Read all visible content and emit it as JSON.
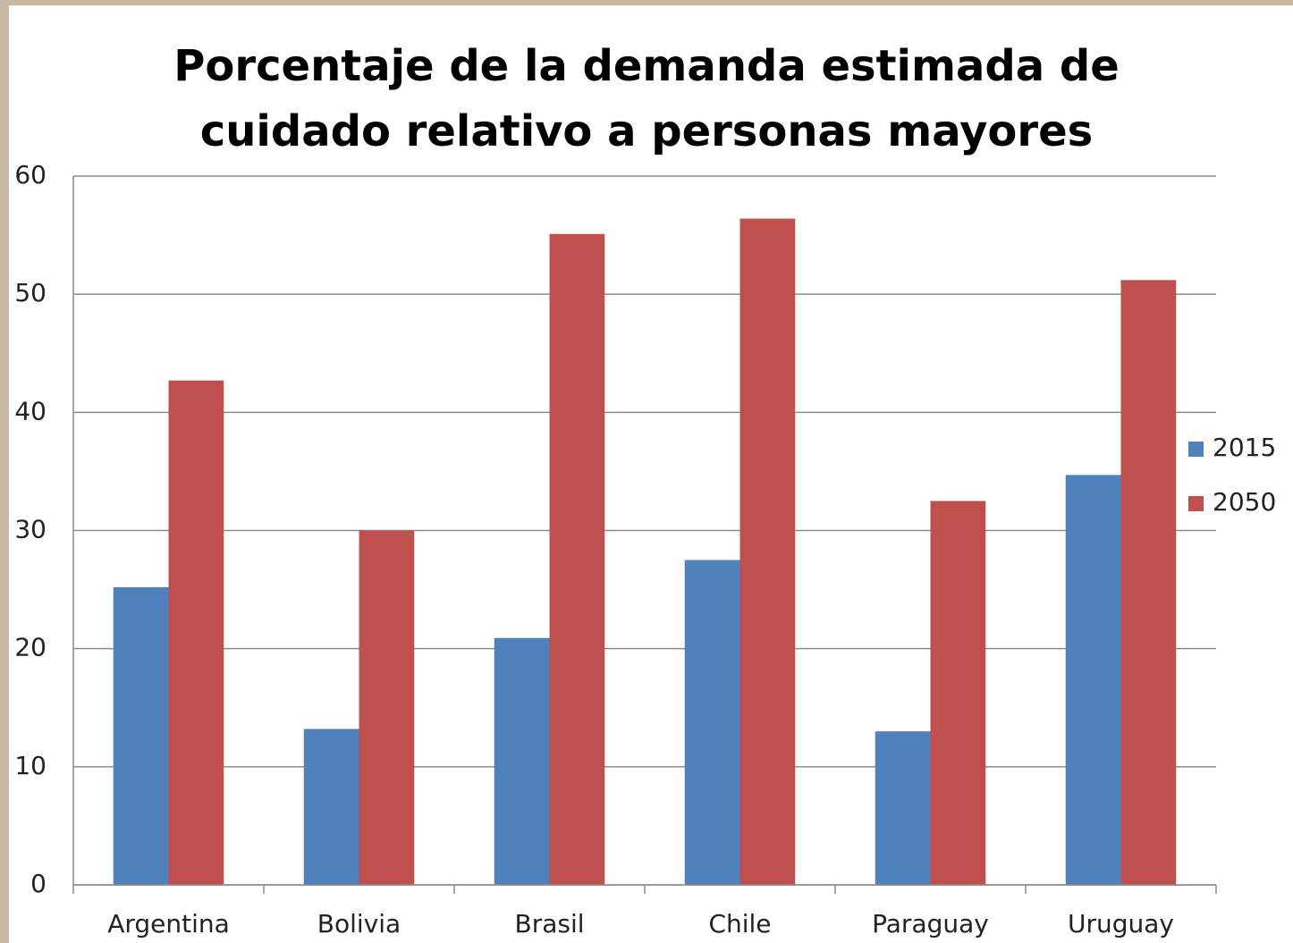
{
  "chart_data": {
    "type": "bar",
    "title": "Porcentaje de la demanda estimada de\ncuidado relativo a personas mayores",
    "categories": [
      "Argentina",
      "Bolivia",
      "Brasil",
      "Chile",
      "Paraguay",
      "Uruguay"
    ],
    "series": [
      {
        "name": "2015",
        "color": "#4f81bd",
        "values": [
          25.2,
          13.2,
          20.9,
          27.5,
          13.0,
          34.7
        ]
      },
      {
        "name": "2050",
        "color": "#c0504d",
        "values": [
          42.7,
          30.0,
          55.1,
          56.4,
          32.5,
          51.2
        ]
      }
    ],
    "ylim": [
      0,
      60
    ],
    "yticks": [
      0,
      10,
      20,
      30,
      40,
      50,
      60
    ],
    "grid": true,
    "legend": "right"
  }
}
